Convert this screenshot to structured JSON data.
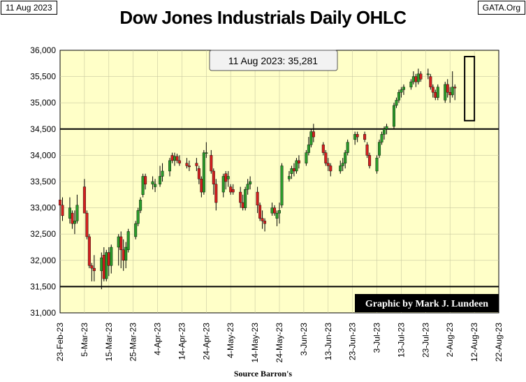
{
  "header": {
    "date_tag": "11 Aug 2023",
    "site_tag": "GATA.Org",
    "title": "Dow Jones Industrials Daily OHLC"
  },
  "callout": "11 Aug 2023: 35,281",
  "credit": "Graphic by Mark J. Lundeen",
  "source": "Source Barron's",
  "chart_data": {
    "type": "ohlc",
    "title": "Dow Jones Industrials Daily OHLC",
    "ylim": [
      31000,
      36000
    ],
    "y_ticks": [
      31000,
      31500,
      32000,
      32500,
      33000,
      33500,
      34000,
      34500,
      35000,
      35500,
      36000
    ],
    "y_tick_labels": [
      "31,000",
      "31,500",
      "32,000",
      "32,500",
      "33,000",
      "33,500",
      "34,000",
      "34,500",
      "35,000",
      "35,500",
      "36,000"
    ],
    "x_ticks": [
      "23-Feb-23",
      "5-Mar-23",
      "15-Mar-23",
      "25-Mar-23",
      "4-Apr-23",
      "14-Apr-23",
      "24-Apr-23",
      "4-May-23",
      "14-May-23",
      "24-May-23",
      "3-Jun-23",
      "13-Jun-23",
      "23-Jun-23",
      "3-Jul-23",
      "13-Jul-23",
      "23-Jul-23",
      "2-Aug-23",
      "12-Aug-23",
      "22-Aug-23"
    ],
    "x_range_days": [
      0,
      180
    ],
    "reference_lines": [
      34500,
      31500
    ],
    "highlight_box": {
      "day_from": 166,
      "day_to": 170,
      "low": 34660,
      "high": 35880
    },
    "colors": {
      "up": "#2a9a2a",
      "down": "#d21f1f",
      "plot_bg": "#ffffc8",
      "wick": "#000000"
    },
    "days": [
      {
        "day": 0,
        "o": 33150,
        "h": 33200,
        "l": 32800,
        "c": 33050
      },
      {
        "day": 1,
        "o": 33050,
        "h": 33200,
        "l": 32750,
        "c": 32850
      },
      {
        "day": 4,
        "o": 32800,
        "h": 33200,
        "l": 32700,
        "c": 33000
      },
      {
        "day": 5,
        "o": 32900,
        "h": 32950,
        "l": 32600,
        "c": 32700
      },
      {
        "day": 6,
        "o": 32700,
        "h": 32950,
        "l": 32500,
        "c": 32750
      },
      {
        "day": 7,
        "o": 32750,
        "h": 33250,
        "l": 32700,
        "c": 33050
      },
      {
        "day": 10,
        "o": 33400,
        "h": 33550,
        "l": 32900,
        "c": 32900
      },
      {
        "day": 11,
        "o": 32900,
        "h": 32950,
        "l": 32400,
        "c": 32450
      },
      {
        "day": 12,
        "o": 32450,
        "h": 32500,
        "l": 31850,
        "c": 31900
      },
      {
        "day": 13,
        "o": 31900,
        "h": 31950,
        "l": 31600,
        "c": 31850
      },
      {
        "day": 14,
        "o": 31850,
        "h": 32100,
        "l": 31600,
        "c": 31800
      },
      {
        "day": 17,
        "o": 31800,
        "h": 32150,
        "l": 31450,
        "c": 32050
      },
      {
        "day": 18,
        "o": 32100,
        "h": 32250,
        "l": 31600,
        "c": 31650
      },
      {
        "day": 19,
        "o": 31650,
        "h": 32200,
        "l": 31600,
        "c": 32150
      },
      {
        "day": 20,
        "o": 32150,
        "h": 32250,
        "l": 31700,
        "c": 31900
      },
      {
        "day": 21,
        "o": 31900,
        "h": 32300,
        "l": 31750,
        "c": 32250
      },
      {
        "day": 24,
        "o": 32250,
        "h": 32500,
        "l": 31900,
        "c": 32450
      },
      {
        "day": 25,
        "o": 32450,
        "h": 32550,
        "l": 31850,
        "c": 32200
      },
      {
        "day": 26,
        "o": 32200,
        "h": 32400,
        "l": 31800,
        "c": 32000
      },
      {
        "day": 27,
        "o": 32000,
        "h": 32350,
        "l": 31850,
        "c": 32250
      },
      {
        "day": 28,
        "o": 32200,
        "h": 32600,
        "l": 32150,
        "c": 32550
      },
      {
        "day": 31,
        "o": 32450,
        "h": 32750,
        "l": 32400,
        "c": 32700
      },
      {
        "day": 32,
        "o": 32700,
        "h": 33000,
        "l": 32650,
        "c": 32950
      },
      {
        "day": 33,
        "o": 32950,
        "h": 33200,
        "l": 32900,
        "c": 33150
      },
      {
        "day": 34,
        "o": 33250,
        "h": 33650,
        "l": 33200,
        "c": 33600
      },
      {
        "day": 35,
        "o": 33600,
        "h": 33650,
        "l": 33350,
        "c": 33450
      },
      {
        "day": 38,
        "o": 33450,
        "h": 33600,
        "l": 33350,
        "c": 33500
      },
      {
        "day": 39,
        "o": 33400,
        "h": 33550,
        "l": 33300,
        "c": 33450
      },
      {
        "day": 41,
        "o": 33450,
        "h": 33800,
        "l": 33400,
        "c": 33600
      },
      {
        "day": 42,
        "o": 33600,
        "h": 33850,
        "l": 33500,
        "c": 33700
      },
      {
        "day": 45,
        "o": 33700,
        "h": 33950,
        "l": 33600,
        "c": 33900
      },
      {
        "day": 46,
        "o": 34000,
        "h": 34050,
        "l": 33850,
        "c": 33900
      },
      {
        "day": 47,
        "o": 33900,
        "h": 34050,
        "l": 33800,
        "c": 33980
      },
      {
        "day": 48,
        "o": 33980,
        "h": 34030,
        "l": 33850,
        "c": 33900
      },
      {
        "day": 49,
        "o": 33900,
        "h": 34000,
        "l": 33800,
        "c": 33850
      },
      {
        "day": 52,
        "o": 33850,
        "h": 33950,
        "l": 33750,
        "c": 33800
      },
      {
        "day": 53,
        "o": 33800,
        "h": 33900,
        "l": 33700,
        "c": 33780
      },
      {
        "day": 56,
        "o": 33850,
        "h": 33950,
        "l": 33700,
        "c": 33800
      },
      {
        "day": 57,
        "o": 33750,
        "h": 33800,
        "l": 33450,
        "c": 33550
      },
      {
        "day": 58,
        "o": 33550,
        "h": 33600,
        "l": 33200,
        "c": 33300
      },
      {
        "day": 59,
        "o": 33300,
        "h": 34100,
        "l": 33250,
        "c": 34050
      },
      {
        "day": 60,
        "o": 34050,
        "h": 34250,
        "l": 33950,
        "c": 34050
      },
      {
        "day": 62,
        "o": 34000,
        "h": 34100,
        "l": 33650,
        "c": 33700
      },
      {
        "day": 63,
        "o": 33700,
        "h": 33750,
        "l": 33250,
        "c": 33450
      },
      {
        "day": 64,
        "o": 33450,
        "h": 33550,
        "l": 32950,
        "c": 33100
      },
      {
        "day": 67,
        "o": 33300,
        "h": 33650,
        "l": 33200,
        "c": 33600
      },
      {
        "day": 68,
        "o": 33650,
        "h": 33700,
        "l": 33350,
        "c": 33500
      },
      {
        "day": 69,
        "o": 33550,
        "h": 33700,
        "l": 33400,
        "c": 33600
      },
      {
        "day": 70,
        "o": 33400,
        "h": 33450,
        "l": 33250,
        "c": 33300
      },
      {
        "day": 71,
        "o": 33350,
        "h": 33450,
        "l": 33250,
        "c": 33300
      },
      {
        "day": 74,
        "o": 33300,
        "h": 33400,
        "l": 33000,
        "c": 33100
      },
      {
        "day": 75,
        "o": 33100,
        "h": 33250,
        "l": 32950,
        "c": 33000
      },
      {
        "day": 76,
        "o": 33000,
        "h": 33400,
        "l": 32950,
        "c": 33350
      },
      {
        "day": 77,
        "o": 33350,
        "h": 33550,
        "l": 33250,
        "c": 33450
      },
      {
        "day": 78,
        "o": 33450,
        "h": 33600,
        "l": 33350,
        "c": 33500
      },
      {
        "day": 81,
        "o": 33300,
        "h": 33400,
        "l": 32900,
        "c": 33050
      },
      {
        "day": 82,
        "o": 33050,
        "h": 33100,
        "l": 32750,
        "c": 32800
      },
      {
        "day": 83,
        "o": 32800,
        "h": 32950,
        "l": 32600,
        "c": 32750
      },
      {
        "day": 84,
        "o": 32750,
        "h": 32800,
        "l": 32550,
        "c": 32700
      },
      {
        "day": 87,
        "o": 32900,
        "h": 33100,
        "l": 32850,
        "c": 33000
      },
      {
        "day": 88,
        "o": 33000,
        "h": 33050,
        "l": 32850,
        "c": 32900
      },
      {
        "day": 89,
        "o": 32800,
        "h": 32950,
        "l": 32650,
        "c": 32900
      },
      {
        "day": 90,
        "o": 32900,
        "h": 33100,
        "l": 32700,
        "c": 32950
      },
      {
        "day": 91,
        "o": 33050,
        "h": 33850,
        "l": 33000,
        "c": 33800
      },
      {
        "day": 94,
        "o": 33550,
        "h": 33700,
        "l": 33500,
        "c": 33600
      },
      {
        "day": 95,
        "o": 33650,
        "h": 33800,
        "l": 33550,
        "c": 33750
      },
      {
        "day": 96,
        "o": 33750,
        "h": 33850,
        "l": 33600,
        "c": 33700
      },
      {
        "day": 97,
        "o": 33700,
        "h": 33950,
        "l": 33650,
        "c": 33900
      },
      {
        "day": 98,
        "o": 33900,
        "h": 34000,
        "l": 33750,
        "c": 33850
      },
      {
        "day": 101,
        "o": 33850,
        "h": 34100,
        "l": 33800,
        "c": 34050
      },
      {
        "day": 102,
        "o": 34050,
        "h": 34350,
        "l": 34000,
        "c": 34200
      },
      {
        "day": 103,
        "o": 34200,
        "h": 34500,
        "l": 34150,
        "c": 34450
      },
      {
        "day": 104,
        "o": 34450,
        "h": 34600,
        "l": 34250,
        "c": 34350
      },
      {
        "day": 108,
        "o": 34200,
        "h": 34250,
        "l": 34000,
        "c": 34050
      },
      {
        "day": 109,
        "o": 34050,
        "h": 34100,
        "l": 33800,
        "c": 33850
      },
      {
        "day": 110,
        "o": 33850,
        "h": 33950,
        "l": 33700,
        "c": 33800
      },
      {
        "day": 111,
        "o": 33800,
        "h": 33850,
        "l": 33600,
        "c": 33700
      },
      {
        "day": 115,
        "o": 33700,
        "h": 33900,
        "l": 33650,
        "c": 33800
      },
      {
        "day": 116,
        "o": 33800,
        "h": 33950,
        "l": 33700,
        "c": 33850
      },
      {
        "day": 117,
        "o": 33850,
        "h": 34100,
        "l": 33750,
        "c": 34050
      },
      {
        "day": 118,
        "o": 34050,
        "h": 34300,
        "l": 34000,
        "c": 34250
      },
      {
        "day": 121,
        "o": 34300,
        "h": 34450,
        "l": 34200,
        "c": 34400
      },
      {
        "day": 122,
        "o": 34400,
        "h": 34450,
        "l": 34250,
        "c": 34350
      },
      {
        "day": 125,
        "o": 34400,
        "h": 34450,
        "l": 34250,
        "c": 34300
      },
      {
        "day": 126,
        "o": 34200,
        "h": 34250,
        "l": 33950,
        "c": 34000
      },
      {
        "day": 127,
        "o": 34000,
        "h": 34050,
        "l": 33750,
        "c": 33800
      },
      {
        "day": 130,
        "o": 33700,
        "h": 34000,
        "l": 33650,
        "c": 33950
      },
      {
        "day": 131,
        "o": 34000,
        "h": 34300,
        "l": 33950,
        "c": 34250
      },
      {
        "day": 132,
        "o": 34250,
        "h": 34450,
        "l": 34200,
        "c": 34400
      },
      {
        "day": 133,
        "o": 34400,
        "h": 34550,
        "l": 34300,
        "c": 34500
      },
      {
        "day": 134,
        "o": 34500,
        "h": 34600,
        "l": 34400,
        "c": 34550
      },
      {
        "day": 137,
        "o": 34550,
        "h": 35000,
        "l": 34500,
        "c": 34950
      },
      {
        "day": 138,
        "o": 34950,
        "h": 35100,
        "l": 34900,
        "c": 35050
      },
      {
        "day": 139,
        "o": 35050,
        "h": 35250,
        "l": 35000,
        "c": 35200
      },
      {
        "day": 140,
        "o": 35200,
        "h": 35300,
        "l": 35100,
        "c": 35250
      },
      {
        "day": 141,
        "o": 35250,
        "h": 35350,
        "l": 35150,
        "c": 35300
      },
      {
        "day": 144,
        "o": 35300,
        "h": 35450,
        "l": 35250,
        "c": 35400
      },
      {
        "day": 145,
        "o": 35400,
        "h": 35600,
        "l": 35350,
        "c": 35500
      },
      {
        "day": 146,
        "o": 35500,
        "h": 35550,
        "l": 35300,
        "c": 35400
      },
      {
        "day": 147,
        "o": 35400,
        "h": 35650,
        "l": 35350,
        "c": 35550
      },
      {
        "day": 148,
        "o": 35550,
        "h": 35600,
        "l": 35400,
        "c": 35450
      },
      {
        "day": 151,
        "o": 35550,
        "h": 35650,
        "l": 35450,
        "c": 35550
      },
      {
        "day": 152,
        "o": 35500,
        "h": 35550,
        "l": 35250,
        "c": 35300
      },
      {
        "day": 153,
        "o": 35300,
        "h": 35350,
        "l": 35100,
        "c": 35200
      },
      {
        "day": 154,
        "o": 35200,
        "h": 35250,
        "l": 35050,
        "c": 35100
      },
      {
        "day": 155,
        "o": 35100,
        "h": 35350,
        "l": 35050,
        "c": 35300
      },
      {
        "day": 158,
        "o": 35050,
        "h": 35400,
        "l": 35000,
        "c": 35350
      },
      {
        "day": 159,
        "o": 35350,
        "h": 35450,
        "l": 35100,
        "c": 35200
      },
      {
        "day": 160,
        "o": 35200,
        "h": 35300,
        "l": 35000,
        "c": 35150
      },
      {
        "day": 161,
        "o": 35150,
        "h": 35600,
        "l": 35100,
        "c": 35300
      },
      {
        "day": 162,
        "o": 35300,
        "h": 35350,
        "l": 35050,
        "c": 35281
      }
    ]
  }
}
